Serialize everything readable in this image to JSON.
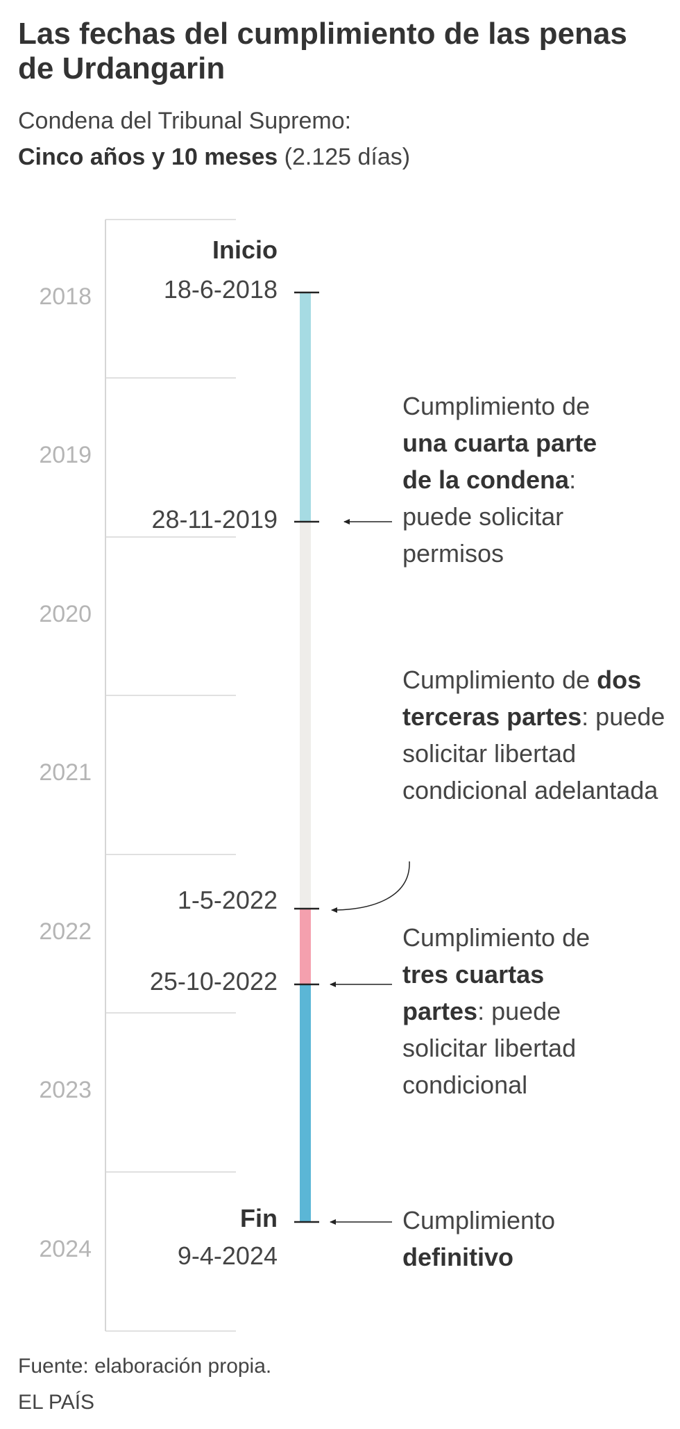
{
  "title": "Las fechas del cumplimiento de las penas de Urdangarin",
  "subtitle": {
    "line1": "Condena del Tribunal Supremo:",
    "bold": "Cinco años y 10 meses",
    "rest": " (2.125 días)"
  },
  "years": [
    "2018",
    "2019",
    "2020",
    "2021",
    "2022",
    "2023",
    "2024"
  ],
  "start": {
    "label": "Inicio",
    "date": "18-6-2018"
  },
  "milestones": [
    {
      "date": "28-11-2019",
      "pre": "Cumplimiento de ",
      "bold": "una cuarta parte de la condena",
      "post": ": puede solicitar permisos"
    },
    {
      "date": "1-5-2022",
      "pre": "Cumplimiento de ",
      "bold": "dos terceras partes",
      "post": ": puede solicitar libertad condicional adelantada"
    },
    {
      "date": "25-10-2022",
      "pre": "Cumplimiento de ",
      "bold": "tres cuartas partes",
      "post": ": puede solicitar libertad condicional"
    }
  ],
  "end": {
    "label": "Fin",
    "date": "9-4-2024",
    "pre": "Cumplimiento ",
    "bold": "definitivo"
  },
  "colors": {
    "segment_1": "#a6dbe3",
    "segment_2": "#efedea",
    "segment_3": "#f4a0ae",
    "segment_4": "#5bb6d6"
  },
  "source": "Fuente: elaboración propia.",
  "brand": "EL PAÍS"
}
